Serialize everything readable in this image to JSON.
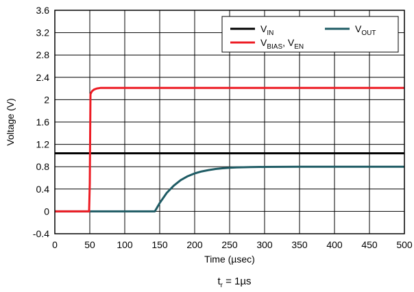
{
  "chart_data": {
    "type": "line",
    "xlabel": "Time (µsec)",
    "ylabel": "Voltage (V)",
    "xlim": [
      0,
      500
    ],
    "ylim": [
      -0.4,
      3.6
    ],
    "x_ticks": [
      0,
      50,
      100,
      150,
      200,
      250,
      300,
      350,
      400,
      450,
      500
    ],
    "x_tick_labels": [
      "0",
      "50",
      "100",
      "150",
      "200",
      "250",
      "300",
      "350",
      "400",
      "450",
      "500"
    ],
    "y_ticks": [
      -0.4,
      0,
      0.4,
      0.8,
      1.2,
      1.6,
      2.0,
      2.4,
      2.8,
      3.2,
      3.6
    ],
    "y_tick_labels": [
      "-0.4",
      "0",
      "0.4",
      "0.8",
      "1.2",
      "1.6",
      "2",
      "2.4",
      "2.8",
      "3.2",
      "3.6"
    ],
    "grid": true,
    "legend_position": "top-right",
    "caption": {
      "base": "t",
      "sub": "r",
      "rest": " = 1µs"
    },
    "series": [
      {
        "name": "V_IN",
        "label_base": "V",
        "label_sub": "IN",
        "label_rest": "",
        "color": "#000000",
        "x": [
          0,
          500
        ],
        "y": [
          1.04,
          1.04
        ]
      },
      {
        "name": "V_OUT",
        "label_base": "V",
        "label_sub": "OUT",
        "label_rest": "",
        "color": "#1e5b64",
        "x": [
          0,
          143,
          150,
          160,
          170,
          180,
          190,
          200,
          210,
          220,
          230,
          240,
          250,
          260,
          280,
          300,
          350,
          400,
          450,
          500
        ],
        "y": [
          0,
          0,
          0.15,
          0.33,
          0.46,
          0.56,
          0.63,
          0.68,
          0.715,
          0.74,
          0.76,
          0.772,
          0.781,
          0.787,
          0.793,
          0.796,
          0.8,
          0.8,
          0.8,
          0.8
        ]
      },
      {
        "name": "V_BIAS, V_EN",
        "label_base": "V",
        "label_sub": "BIAS",
        "label_rest": ", V",
        "label_sub2": "EN",
        "color": "#ed1c24",
        "x": [
          0,
          49,
          50,
          51,
          53,
          56,
          60,
          65,
          70,
          100,
          200,
          300,
          400,
          500
        ],
        "y": [
          0,
          0,
          0.5,
          2.1,
          2.15,
          2.18,
          2.2,
          2.21,
          2.21,
          2.21,
          2.21,
          2.21,
          2.21,
          2.21
        ]
      }
    ]
  }
}
